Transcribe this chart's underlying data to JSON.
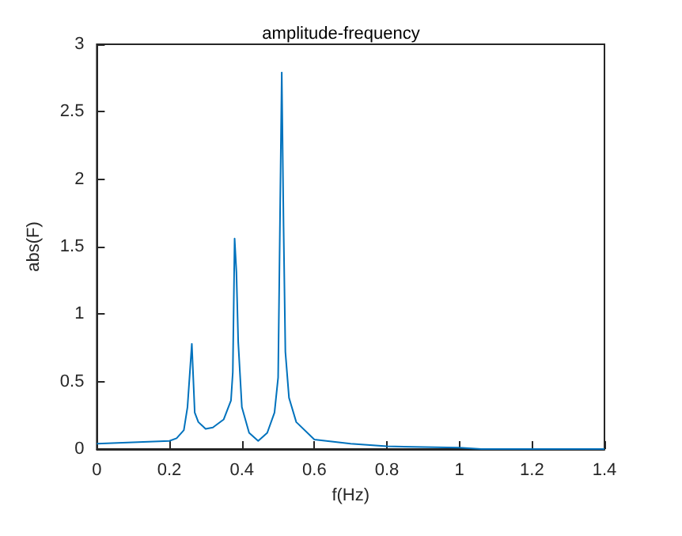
{
  "chart_data": {
    "type": "line",
    "title": "amplitude-frequency",
    "xlabel": "f(Hz)",
    "ylabel": "abs(F)",
    "x": [
      0,
      0.1,
      0.2,
      0.22,
      0.24,
      0.25,
      0.262,
      0.27,
      0.28,
      0.3,
      0.32,
      0.35,
      0.37,
      0.375,
      0.38,
      0.385,
      0.39,
      0.4,
      0.42,
      0.445,
      0.47,
      0.49,
      0.5,
      0.51,
      0.515,
      0.52,
      0.53,
      0.55,
      0.6,
      0.7,
      0.8,
      1.0,
      1.06,
      1.27,
      1.4
    ],
    "series": [
      {
        "color": "#0072bd",
        "values": [
          0.04,
          0.05,
          0.06,
          0.08,
          0.14,
          0.31,
          0.78,
          0.27,
          0.2,
          0.15,
          0.16,
          0.22,
          0.36,
          0.57,
          1.56,
          1.31,
          0.79,
          0.31,
          0.12,
          0.06,
          0.12,
          0.27,
          0.53,
          2.79,
          1.65,
          0.72,
          0.38,
          0.2,
          0.07,
          0.04,
          0.02,
          0.01,
          0,
          0,
          0
        ]
      }
    ],
    "xlim": [
      0,
      1.4
    ],
    "xticks": [
      0,
      0.2,
      0.4,
      0.6,
      0.8,
      1,
      1.2,
      1.4
    ],
    "ylim": [
      0,
      3
    ],
    "yticks": [
      0,
      0.5,
      1,
      1.5,
      2,
      2.5,
      3
    ],
    "grid": false,
    "marker": "none",
    "line_style": "solid"
  }
}
